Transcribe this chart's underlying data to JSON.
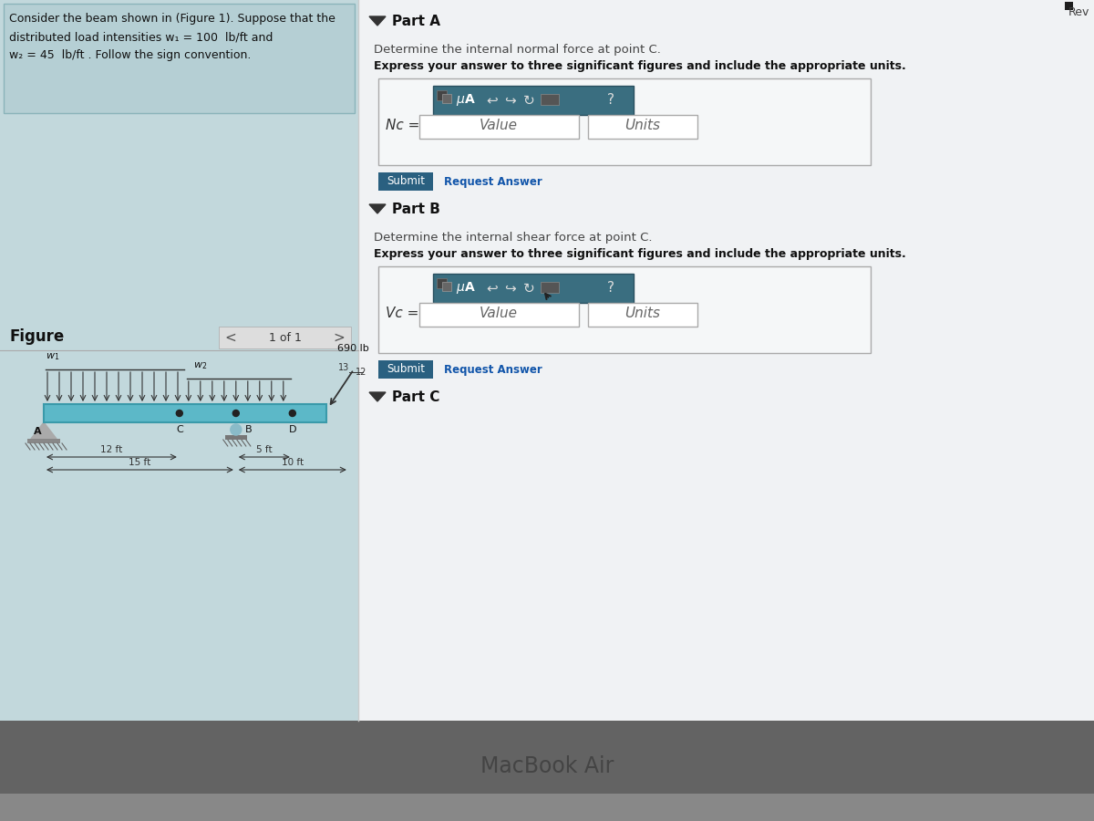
{
  "bg_color": "#c8c8c8",
  "screen_bg": "#dde2e6",
  "left_panel_bg": "#c2d8dc",
  "text_box_bg": "#b5cfd4",
  "right_panel_bg": "#eef0f2",
  "problem_text_lines": [
    "Consider the beam shown in (Figure 1). Suppose that the",
    "distributed load intensities w₁ = 100  lb/ft and",
    "w₂ = 45  lb/ft . Follow the sign convention."
  ],
  "figure_label": "Figure",
  "nav_text": "1 of 1",
  "beam_color": "#5cb8c8",
  "beam_outline": "#3a9aaa",
  "part_a_header": "Part A",
  "part_a_text1": "Determine the internal normal force at point C.",
  "part_a_text2": "Express your answer to three significant figures and include the appropriate units.",
  "part_a_label": "Nc =",
  "part_b_header": "Part B",
  "part_b_text1": "Determine the internal shear force at point C.",
  "part_b_text2": "Express your answer to three significant figures and include the appropriate units.",
  "part_b_label": "Vc =",
  "part_c_header": "Part C",
  "submit_btn_color": "#2a6080",
  "toolbar_bg": "#3a6e80",
  "value_placeholder": "Value",
  "units_placeholder": "Units",
  "force_label": "690 lb",
  "macbook_text": "MacBook Air",
  "rev_text": "Rev",
  "white": "#ffffff",
  "dark_text": "#111111",
  "mid_text": "#333333",
  "light_text": "#888888",
  "link_color": "#1155aa"
}
